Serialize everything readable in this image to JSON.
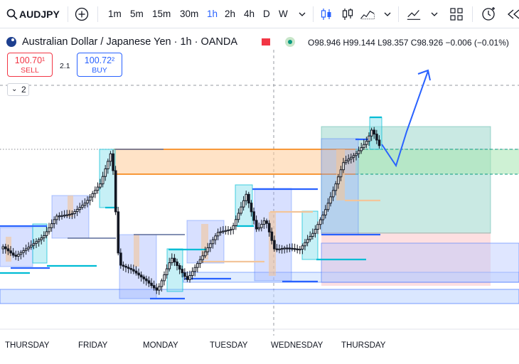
{
  "toolbar": {
    "symbol": "AUDJPY",
    "intervals": [
      "1m",
      "5m",
      "15m",
      "30m",
      "1h",
      "2h",
      "4h",
      "D",
      "W"
    ],
    "active_interval": "1h"
  },
  "legend": {
    "title": "Australian Dollar / Japanese Yen · 1h · OANDA",
    "ohlc": "O98.946  H99.144  L98.357  C98.926  −0.006 (−0.01%)"
  },
  "trade": {
    "sell_price": "100.70¹",
    "sell_label": "SELL",
    "spread": "2.1",
    "buy_price": "100.72²",
    "buy_label": "BUY"
  },
  "indicators_count": "2",
  "time_axis": [
    "THURSDAY",
    "FRIDAY",
    "MONDAY",
    "TUESDAY",
    "WEDNESDAY",
    "THURSDAY"
  ],
  "colors": {
    "up_candle": "#131722",
    "accent": "#2962ff",
    "sell": "#f23645",
    "buy": "#2962ff",
    "teal_line": "#00bcd4",
    "orange_zone": "#f57c00"
  }
}
